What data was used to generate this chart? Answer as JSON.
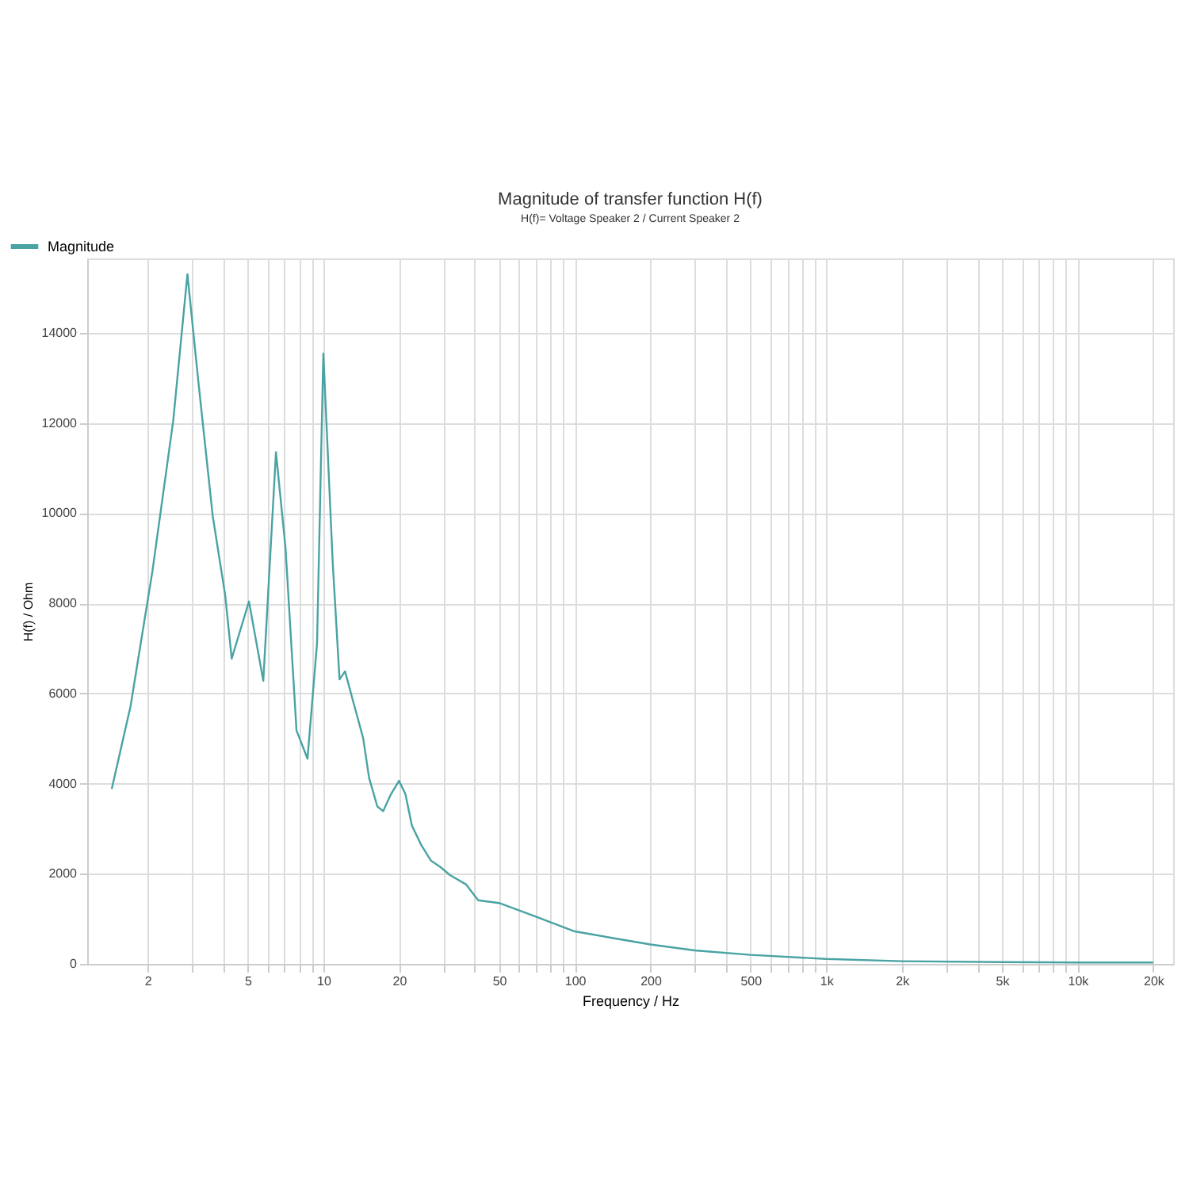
{
  "chart_data": {
    "type": "line",
    "title": "Magnitude of transfer function H(f)",
    "subtitle": "H(f)= Voltage Speaker 2 / Current Speaker 2",
    "xlabel": "Frequency / Hz",
    "ylabel": "H(f) / Ohm",
    "log": "x",
    "grid": true,
    "legend": "top left",
    "line_style": "solid",
    "xlim": [
      1.15,
      24000
    ],
    "ylim": [
      0,
      15650
    ],
    "yticks": [
      0,
      2000,
      4000,
      6000,
      8000,
      10000,
      12000,
      14000
    ],
    "xticks": [
      2,
      {
        "value": 3,
        "label": null
      },
      {
        "value": 4,
        "label": null
      },
      5,
      {
        "value": 6,
        "label": null
      },
      {
        "value": 7,
        "label": null
      },
      {
        "value": 8,
        "label": null
      },
      {
        "value": 9,
        "label": null
      },
      10,
      20,
      {
        "value": 30,
        "label": null
      },
      {
        "value": 40,
        "label": null
      },
      50,
      {
        "value": 60,
        "label": null
      },
      {
        "value": 70,
        "label": null
      },
      {
        "value": 80,
        "label": null
      },
      {
        "value": 90,
        "label": null
      },
      100,
      200,
      {
        "value": 300,
        "label": null
      },
      {
        "value": 400,
        "label": null
      },
      500,
      {
        "value": 600,
        "label": null
      },
      {
        "value": 700,
        "label": null
      },
      {
        "value": 800,
        "label": null
      },
      {
        "value": 900,
        "label": null
      },
      {
        "value": 1000,
        "label": "1k"
      },
      {
        "value": 2000,
        "label": "2k"
      },
      {
        "value": 3000,
        "label": null
      },
      {
        "value": 4000,
        "label": null
      },
      {
        "value": 5000,
        "label": "5k"
      },
      {
        "value": 6000,
        "label": null
      },
      {
        "value": 7000,
        "label": null
      },
      {
        "value": 8000,
        "label": null
      },
      {
        "value": 9000,
        "label": null
      },
      {
        "value": 10000,
        "label": "10k"
      },
      {
        "value": 20000,
        "label": "20k"
      }
    ],
    "series": [
      {
        "name": "Magnitude",
        "color": "#4aa3a3",
        "x": [
          1.44,
          1.71,
          2.09,
          2.53,
          2.88,
          3.18,
          3.63,
          4.07,
          4.32,
          5.06,
          5.77,
          6.48,
          7.07,
          7.82,
          8.65,
          9.44,
          10,
          10.9,
          11.6,
          12.2,
          13.2,
          14.4,
          15.2,
          16.4,
          17.3,
          18.6,
          20,
          21.2,
          22.5,
          24.5,
          26.8,
          29.2,
          31.9,
          37,
          41.3,
          50,
          70,
          100,
          150,
          200,
          300,
          500,
          1000,
          2000,
          5000,
          10000,
          20000
        ],
        "values": [
          3880,
          5710,
          8710,
          12060,
          15300,
          12940,
          9940,
          8180,
          6770,
          8040,
          6280,
          11350,
          9240,
          5180,
          4550,
          7120,
          13540,
          8890,
          6310,
          6490,
          5780,
          5010,
          4130,
          3490,
          3390,
          3770,
          4060,
          3770,
          3070,
          2640,
          2290,
          2150,
          1970,
          1760,
          1410,
          1350,
          1050,
          720,
          550,
          430,
          300,
          200,
          110,
          60,
          40,
          30,
          30
        ]
      }
    ]
  }
}
